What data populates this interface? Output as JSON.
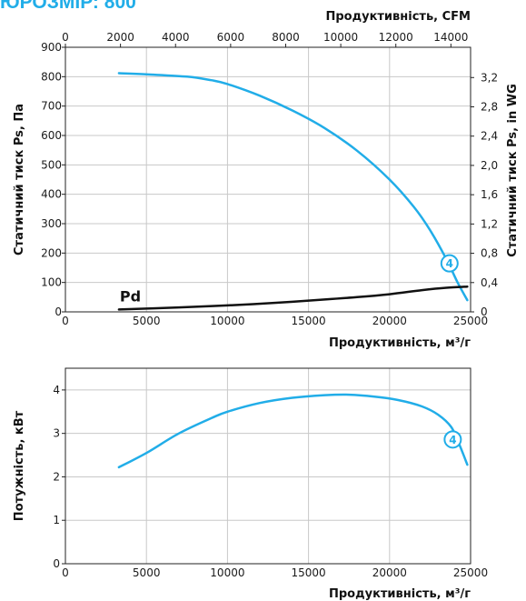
{
  "title": "ЮРОЗМІР: 800",
  "colors": {
    "curve": "#21ade8",
    "pd_curve": "#111111",
    "title": "#21ade8",
    "grid": "#c8c8c8"
  },
  "chart_data": [
    {
      "type": "line",
      "title": "",
      "xlabel": "Продуктивність, м³/г",
      "x_top_label": "Продуктивність, CFM",
      "ylabel": "Статичний тиск Ps, Па",
      "y_right_label": "Статичний тиск Ps, in WG",
      "xlim": [
        0,
        25000
      ],
      "ylim": [
        0,
        900
      ],
      "x_ticks": [
        0,
        5000,
        10000,
        15000,
        20000,
        25000
      ],
      "x_tick_labels": [
        "0",
        "5000",
        "10000",
        "15000",
        "20000",
        "25000"
      ],
      "y_ticks": [
        0,
        100,
        200,
        300,
        400,
        500,
        600,
        700,
        800,
        900
      ],
      "y_tick_labels": [
        "0",
        "100",
        "200",
        "300",
        "400",
        "500",
        "600",
        "700",
        "800",
        "900"
      ],
      "x_top_ticks": [
        0,
        2000,
        4000,
        6000,
        8000,
        10000,
        12000,
        14000
      ],
      "x_top_tick_labels": [
        "0",
        "2000",
        "4000",
        "6000",
        "8000",
        "10000",
        "12000",
        "14000"
      ],
      "y_right_ticks": [
        0,
        0.4,
        0.8,
        1.2,
        1.6,
        2.0,
        2.4,
        2.8,
        3.2
      ],
      "y_right_tick_labels": [
        "0",
        "0,4",
        "0,8",
        "1,2",
        "1,6",
        "2,0",
        "2,4",
        "2,8",
        "3,2"
      ],
      "grid": true,
      "series": [
        {
          "name": "",
          "x": [
            3300,
            5000,
            7500,
            9000,
            10000,
            12000,
            14000,
            16000,
            18000,
            20000,
            21500,
            22500,
            23500,
            24200,
            24800
          ],
          "y": [
            812,
            808,
            800,
            788,
            775,
            735,
            685,
            625,
            548,
            450,
            357,
            278,
            180,
            100,
            40
          ],
          "marker": "4",
          "marker_x": 23700,
          "marker_y": 165
        },
        {
          "name": "Pd",
          "x": [
            3300,
            7000,
            10000,
            13000,
            16000,
            18000,
            20000,
            22000,
            23500,
            24800
          ],
          "y": [
            8,
            15,
            22,
            31,
            42,
            50,
            60,
            74,
            82,
            86
          ]
        }
      ]
    },
    {
      "type": "line",
      "title": "",
      "xlabel": "Продуктивність, м³/г",
      "ylabel": "Потужність, кВт",
      "xlim": [
        0,
        25000
      ],
      "ylim": [
        0,
        4.5
      ],
      "x_ticks": [
        0,
        5000,
        10000,
        15000,
        20000,
        25000
      ],
      "x_tick_labels": [
        "0",
        "5000",
        "10000",
        "15000",
        "20000",
        "25000"
      ],
      "y_ticks": [
        0,
        1,
        2,
        3,
        4
      ],
      "y_tick_labels": [
        "0",
        "1",
        "2",
        "3",
        "4"
      ],
      "grid": true,
      "series": [
        {
          "name": "",
          "x": [
            3300,
            5000,
            7000,
            9000,
            10000,
            12000,
            14000,
            16000,
            17500,
            19000,
            20500,
            22000,
            23000,
            23800,
            24300,
            24800
          ],
          "y": [
            2.22,
            2.55,
            3.0,
            3.35,
            3.5,
            3.7,
            3.82,
            3.88,
            3.89,
            3.85,
            3.77,
            3.62,
            3.43,
            3.15,
            2.75,
            2.28
          ],
          "marker": "4",
          "marker_x": 23900,
          "marker_y": 2.86
        }
      ]
    }
  ]
}
